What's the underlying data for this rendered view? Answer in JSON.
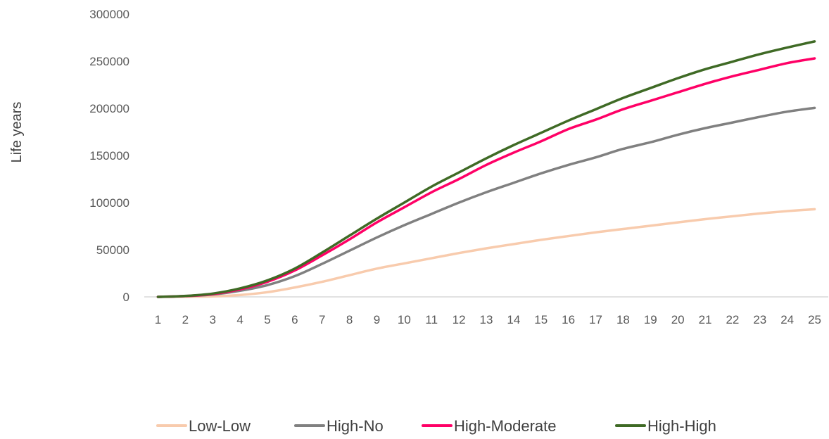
{
  "chart_data": {
    "type": "line",
    "ylabel": "Life years",
    "xlabel": "",
    "ylim": [
      0,
      300000
    ],
    "yticks": [
      0,
      50000,
      100000,
      150000,
      200000,
      250000,
      300000
    ],
    "ytick_labels": [
      "0",
      "50000",
      "100000",
      "150000",
      "200000",
      "250000",
      "300000"
    ],
    "x": [
      1,
      2,
      3,
      4,
      5,
      6,
      7,
      8,
      9,
      10,
      11,
      12,
      13,
      14,
      15,
      16,
      17,
      18,
      19,
      20,
      21,
      22,
      23,
      24,
      25
    ],
    "x_labels": [
      "1",
      "2",
      "3",
      "4",
      "5",
      "6",
      "7",
      "8",
      "9",
      "10",
      "11",
      "12",
      "13",
      "14",
      "15",
      "16",
      "17",
      "18",
      "19",
      "20",
      "21",
      "22",
      "23",
      "24",
      "25"
    ],
    "grid": false,
    "legend_position": "bottom",
    "series": [
      {
        "name": "Low-Low",
        "color": "#f8cbad",
        "values": [
          0,
          200,
          600,
          2000,
          5000,
          10000,
          16000,
          23000,
          30000,
          35500,
          41000,
          46500,
          51500,
          56000,
          60500,
          64500,
          68500,
          72000,
          75500,
          79000,
          82500,
          85500,
          88500,
          91000,
          93000
        ]
      },
      {
        "name": "High-No",
        "color": "#808080",
        "values": [
          0,
          800,
          2500,
          6500,
          12500,
          22000,
          35000,
          49000,
          63000,
          76000,
          88000,
          100000,
          111000,
          121000,
          131000,
          140000,
          148000,
          157000,
          164000,
          172000,
          179000,
          185000,
          191000,
          196500,
          200500
        ]
      },
      {
        "name": "High-Moderate",
        "color": "#ff0066",
        "values": [
          0,
          900,
          3000,
          8000,
          16000,
          28000,
          44000,
          61000,
          79000,
          95000,
          111000,
          125000,
          140000,
          153000,
          165000,
          178000,
          188000,
          199000,
          208000,
          217000,
          226000,
          234000,
          241000,
          248000,
          253000
        ]
      },
      {
        "name": "High-High",
        "color": "#3f6a25",
        "values": [
          0,
          1000,
          3500,
          9000,
          17500,
          30000,
          47000,
          65000,
          83000,
          100000,
          117000,
          132000,
          147000,
          161000,
          174000,
          187000,
          199000,
          211000,
          221500,
          232000,
          241500,
          249500,
          257500,
          264500,
          271000
        ]
      }
    ]
  }
}
